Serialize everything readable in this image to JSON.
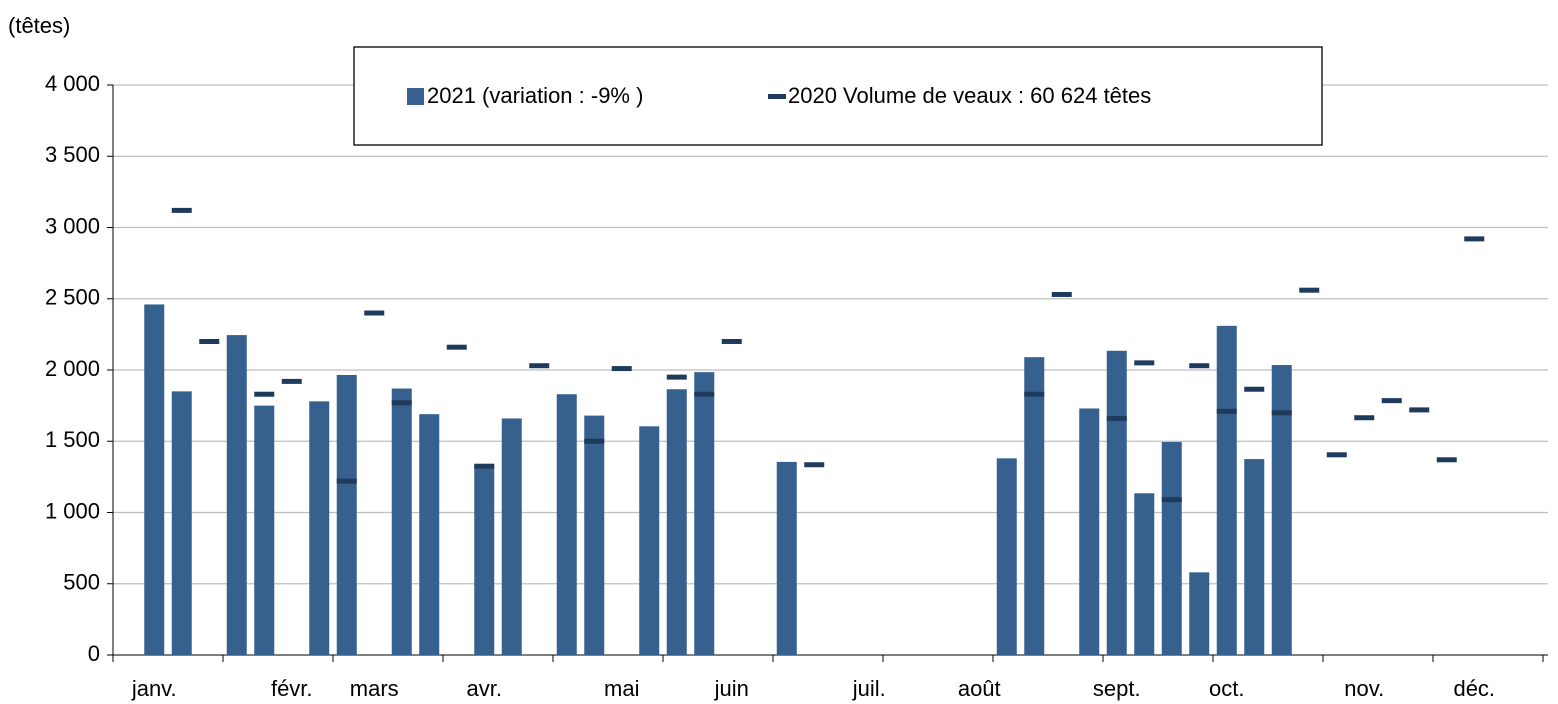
{
  "chart_data": {
    "type": "bar",
    "y_label": "(têtes)",
    "categories": [
      null,
      "janv.",
      null,
      null,
      null,
      null,
      "févr.",
      null,
      null,
      "mars",
      null,
      null,
      null,
      "avr.",
      null,
      null,
      null,
      null,
      "mai",
      null,
      null,
      null,
      "juin",
      null,
      null,
      null,
      null,
      "juil.",
      null,
      null,
      null,
      "août",
      null,
      null,
      null,
      null,
      "sept.",
      null,
      null,
      null,
      "oct.",
      null,
      null,
      null,
      null,
      "nov.",
      null,
      null,
      null,
      "déc.",
      null,
      null
    ],
    "series": [
      {
        "name": "2021 (variation : -9% )",
        "color": "#36618f",
        "mark": "bar",
        "values": [
          null,
          2460,
          1850,
          null,
          2245,
          1750,
          null,
          1780,
          1965,
          null,
          1870,
          1690,
          null,
          1330,
          1660,
          null,
          1830,
          1680,
          null,
          1605,
          1865,
          1985,
          null,
          null,
          1355,
          null,
          null,
          null,
          null,
          null,
          null,
          null,
          1380,
          2090,
          null,
          1730,
          2135,
          1135,
          1495,
          580,
          2310,
          1375,
          2035,
          null,
          null,
          null,
          null,
          null,
          null,
          null,
          null,
          null
        ]
      },
      {
        "name": "2020 Volume de veaux : 60 624 têtes",
        "color": "#1f3b5c",
        "mark": "dash",
        "values": [
          null,
          null,
          3120,
          2200,
          null,
          1830,
          1920,
          null,
          1220,
          2400,
          1770,
          null,
          2160,
          1325,
          null,
          2030,
          null,
          1500,
          2010,
          null,
          1950,
          1830,
          2200,
          null,
          null,
          1335,
          null,
          null,
          null,
          null,
          null,
          null,
          null,
          1830,
          2530,
          null,
          1660,
          2050,
          1090,
          2030,
          1710,
          1865,
          1700,
          2560,
          1405,
          1665,
          1785,
          1720,
          1370,
          2920,
          null,
          null
        ]
      }
    ],
    "ylim": [
      0,
      4000
    ],
    "yticks": [
      0,
      500,
      {
        "value": 1000,
        "label": "1 000"
      },
      {
        "value": 1500,
        "label": "1 500"
      },
      {
        "value": 2000,
        "label": "2 000"
      },
      {
        "value": 2500,
        "label": "2 500"
      },
      {
        "value": 3000,
        "label": "3 000"
      },
      {
        "value": 3500,
        "label": "3 500"
      },
      {
        "value": 4000,
        "label": "4 000"
      }
    ],
    "grid": true,
    "legend": "top"
  }
}
